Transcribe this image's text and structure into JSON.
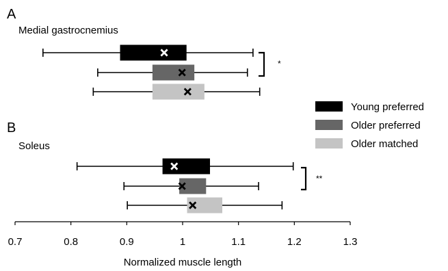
{
  "chart_data": {
    "type": "boxplot",
    "orientation": "horizontal",
    "xlabel": "Normalized muscle length",
    "xlim": [
      0.7,
      1.3
    ],
    "xticks": [
      0.7,
      0.8,
      0.9,
      1.0,
      1.1,
      1.2,
      1.3
    ],
    "xtick_labels": [
      "0.7",
      "0.8",
      "0.9",
      "1",
      "1.1",
      "1.2",
      "1.3"
    ],
    "grid": false,
    "legend_position": "right",
    "series": [
      {
        "name": "Young preferred",
        "color": "#000000",
        "marker_color": "#ffffff"
      },
      {
        "name": "Older preferred",
        "color": "#666666",
        "marker_color": "#000000"
      },
      {
        "name": "Older matched",
        "color": "#c4c4c4",
        "marker_color": "#000000"
      }
    ],
    "panels": [
      {
        "letter": "A",
        "title": "Medial gastrocnemius",
        "significance": "*",
        "boxes": [
          {
            "series": "Young preferred",
            "whisker_low": 0.75,
            "q1": 0.888,
            "q3": 1.007,
            "whisker_high": 1.126,
            "mean": 0.967
          },
          {
            "series": "Older preferred",
            "whisker_low": 0.848,
            "q1": 0.946,
            "q3": 1.021,
            "whisker_high": 1.116,
            "mean": 0.999
          },
          {
            "series": "Older matched",
            "whisker_low": 0.84,
            "q1": 0.946,
            "q3": 1.039,
            "whisker_high": 1.138,
            "mean": 1.009
          }
        ]
      },
      {
        "letter": "B",
        "title": "Soleus",
        "significance": "**",
        "boxes": [
          {
            "series": "Young preferred",
            "whisker_low": 0.811,
            "q1": 0.964,
            "q3": 1.049,
            "whisker_high": 1.198,
            "mean": 0.985
          },
          {
            "series": "Older preferred",
            "whisker_low": 0.895,
            "q1": 0.994,
            "q3": 1.042,
            "whisker_high": 1.136,
            "mean": 0.999
          },
          {
            "series": "Older matched",
            "whisker_low": 0.901,
            "q1": 1.008,
            "q3": 1.071,
            "whisker_high": 1.178,
            "mean": 1.018
          }
        ]
      }
    ]
  }
}
